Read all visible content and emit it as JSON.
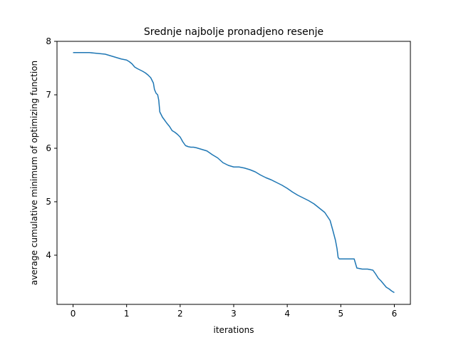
{
  "chart_data": {
    "type": "line",
    "title": "Srednje najbolje pronadjeno resenje",
    "xlabel": "iterations",
    "ylabel": "average cumulative minimum of optimizing function",
    "xlim": [
      -0.3,
      6.3
    ],
    "ylim": [
      3.08,
      8.0
    ],
    "xticks": [
      0,
      1,
      2,
      3,
      4,
      5,
      6
    ],
    "yticks": [
      4,
      5,
      6,
      7,
      8
    ],
    "grid": false,
    "line_color": "#1f77b4",
    "series": [
      {
        "x": [
          0,
          0.1,
          0.3,
          0.4,
          0.5,
          0.6,
          0.7,
          0.8,
          0.9,
          1.0,
          1.05,
          1.1,
          1.15,
          1.2,
          1.3,
          1.35,
          1.4,
          1.45,
          1.5,
          1.52,
          1.55,
          1.58,
          1.6,
          1.62,
          1.65,
          1.67,
          1.7,
          1.75,
          1.8,
          1.85,
          1.9,
          1.95,
          2.0,
          2.05,
          2.1,
          2.15,
          2.2,
          2.25,
          2.3,
          2.4,
          2.5,
          2.6,
          2.7,
          2.8,
          2.9,
          3.0,
          3.1,
          3.2,
          3.3,
          3.4,
          3.5,
          3.6,
          3.7,
          3.8,
          3.9,
          4.0,
          4.1,
          4.2,
          4.3,
          4.4,
          4.5,
          4.6,
          4.7,
          4.8,
          4.85,
          4.9,
          4.93,
          4.95,
          4.97,
          5.0,
          5.05,
          5.1,
          5.2,
          5.25,
          5.3,
          5.4,
          5.5,
          5.6,
          5.65,
          5.7,
          5.75,
          5.8,
          5.85,
          5.9,
          5.95,
          6.0
        ],
        "y": [
          7.79,
          7.79,
          7.79,
          7.78,
          7.77,
          7.76,
          7.73,
          7.7,
          7.67,
          7.65,
          7.62,
          7.58,
          7.52,
          7.49,
          7.44,
          7.41,
          7.37,
          7.32,
          7.22,
          7.1,
          7.03,
          7.0,
          6.9,
          6.68,
          6.62,
          6.58,
          6.54,
          6.47,
          6.41,
          6.33,
          6.3,
          6.26,
          6.21,
          6.12,
          6.05,
          6.03,
          6.02,
          6.02,
          6.01,
          5.98,
          5.95,
          5.88,
          5.82,
          5.73,
          5.68,
          5.65,
          5.65,
          5.63,
          5.6,
          5.56,
          5.5,
          5.45,
          5.41,
          5.36,
          5.31,
          5.25,
          5.18,
          5.12,
          5.07,
          5.02,
          4.96,
          4.88,
          4.8,
          4.65,
          4.47,
          4.28,
          4.12,
          3.96,
          3.93,
          3.93,
          3.93,
          3.93,
          3.93,
          3.93,
          3.76,
          3.74,
          3.74,
          3.72,
          3.65,
          3.57,
          3.52,
          3.46,
          3.4,
          3.37,
          3.33,
          3.3
        ]
      }
    ]
  }
}
